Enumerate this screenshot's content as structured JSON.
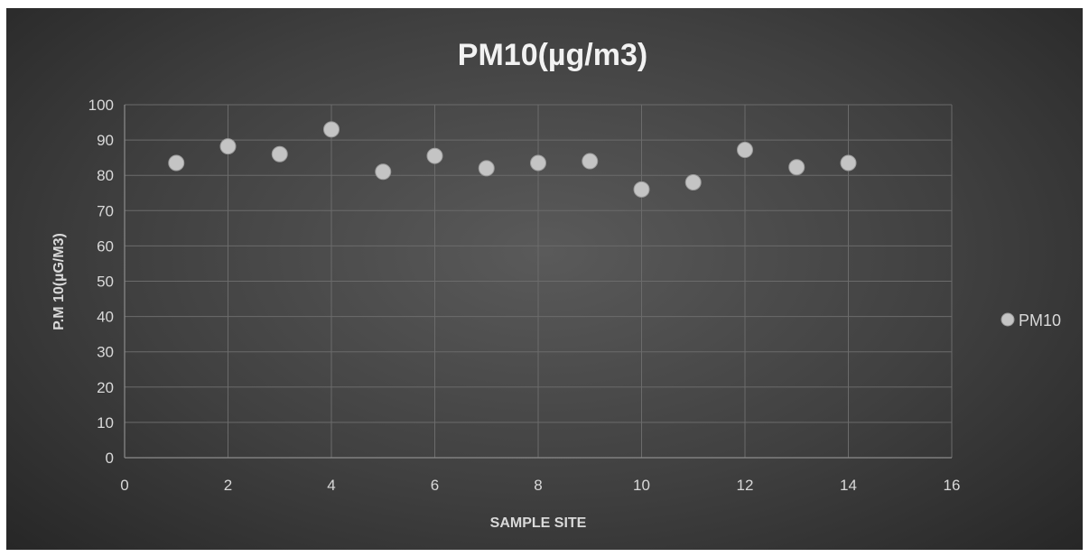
{
  "chart_data": {
    "type": "scatter",
    "title": "PM10(µg/m3)",
    "xlabel": "SAMPLE SITE",
    "ylabel": "P.M 10(µG/M3)",
    "xlim": [
      0,
      16
    ],
    "ylim": [
      0,
      100
    ],
    "xticks": [
      0,
      2,
      4,
      6,
      8,
      10,
      12,
      14,
      16
    ],
    "yticks": [
      0,
      10,
      20,
      30,
      40,
      50,
      60,
      70,
      80,
      90,
      100
    ],
    "grid": true,
    "legend_position": "right",
    "series": [
      {
        "name": "PM10",
        "color": "#c4c4c4",
        "points": [
          {
            "x": 1,
            "y": 83.5
          },
          {
            "x": 2,
            "y": 88.2
          },
          {
            "x": 3,
            "y": 86
          },
          {
            "x": 4,
            "y": 93
          },
          {
            "x": 5,
            "y": 81
          },
          {
            "x": 6,
            "y": 85.5
          },
          {
            "x": 7,
            "y": 82
          },
          {
            "x": 8,
            "y": 83.5
          },
          {
            "x": 9,
            "y": 84
          },
          {
            "x": 10,
            "y": 76
          },
          {
            "x": 11,
            "y": 78
          },
          {
            "x": 12,
            "y": 87.2
          },
          {
            "x": 13,
            "y": 82.3
          },
          {
            "x": 14,
            "y": 83.5
          }
        ]
      }
    ]
  }
}
